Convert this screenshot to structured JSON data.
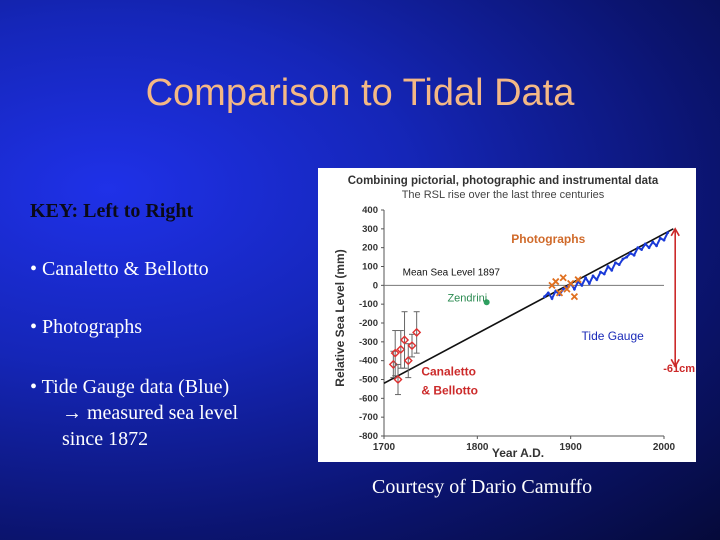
{
  "slide": {
    "title": "Comparison to Tidal Data",
    "key_heading": "KEY:  Left to Right",
    "bullets": [
      "• Canaletto & Bellotto",
      "• Photographs",
      "• Tide Gauge data (Blue)"
    ],
    "bullet3_line2": "measured sea level",
    "bullet3_line3": "since 1872",
    "arrow_glyph": "→",
    "credit": "Courtesy of Dario Camuffo"
  },
  "chart_data": {
    "type": "line",
    "title": "Combining pictorial, photographic  and instrumental data",
    "subtitle": "The RSL rise over the last three centuries",
    "ylabel": "Relative Sea Level (mm)",
    "xlabel": "Year A.D.",
    "xlim": [
      1700,
      2000
    ],
    "ylim": [
      -800,
      400
    ],
    "x_ticks": [
      1700,
      1800,
      1900,
      2000
    ],
    "y_ticks": [
      400,
      300,
      200,
      100,
      0,
      -100,
      -200,
      -300,
      -400,
      -500,
      -600,
      -700,
      -800
    ],
    "reference_line": {
      "label": "Mean Sea Level 1897",
      "y": 0
    },
    "trend_line": {
      "x": [
        1700,
        2010
      ],
      "y": [
        -520,
        300
      ]
    },
    "annotations": {
      "photographs": "Photographs",
      "zendrini": "Zendrini",
      "tide_gauge": "Tide Gauge",
      "canaletto": "Canaletto",
      "bellotto": "& Bellotto",
      "rise": "-61cm"
    },
    "series": [
      {
        "name": "Tide Gauge",
        "color": "#1a3ad8",
        "x": [
          1872,
          1876,
          1880,
          1884,
          1888,
          1892,
          1896,
          1900,
          1904,
          1908,
          1912,
          1916,
          1920,
          1924,
          1928,
          1932,
          1936,
          1940,
          1944,
          1948,
          1952,
          1956,
          1960,
          1964,
          1968,
          1972,
          1976,
          1980,
          1984,
          1988,
          1992,
          1996,
          2000,
          2004
        ],
        "y": [
          -60,
          -40,
          -70,
          -30,
          -50,
          -20,
          -10,
          10,
          -20,
          20,
          0,
          40,
          10,
          50,
          30,
          70,
          60,
          100,
          80,
          120,
          110,
          140,
          150,
          170,
          160,
          200,
          190,
          220,
          200,
          230,
          210,
          250,
          240,
          280
        ]
      },
      {
        "name": "Photographs",
        "color": "#e07020",
        "x": [
          1880,
          1884,
          1888,
          1892,
          1896,
          1900,
          1904,
          1908
        ],
        "y": [
          0,
          20,
          -40,
          40,
          -20,
          10,
          -60,
          30
        ]
      },
      {
        "name": "Zendrini",
        "color": "#2ea060",
        "x": [
          1810
        ],
        "y": [
          -90
        ]
      },
      {
        "name": "Canaletto & Bellotto",
        "color": "#e03030",
        "x": [
          1710,
          1712,
          1715,
          1718,
          1722,
          1726,
          1730,
          1735
        ],
        "y": [
          -420,
          -360,
          -500,
          -340,
          -290,
          -400,
          -320,
          -250
        ],
        "err": [
          70,
          120,
          80,
          100,
          150,
          90,
          60,
          110
        ]
      }
    ]
  }
}
